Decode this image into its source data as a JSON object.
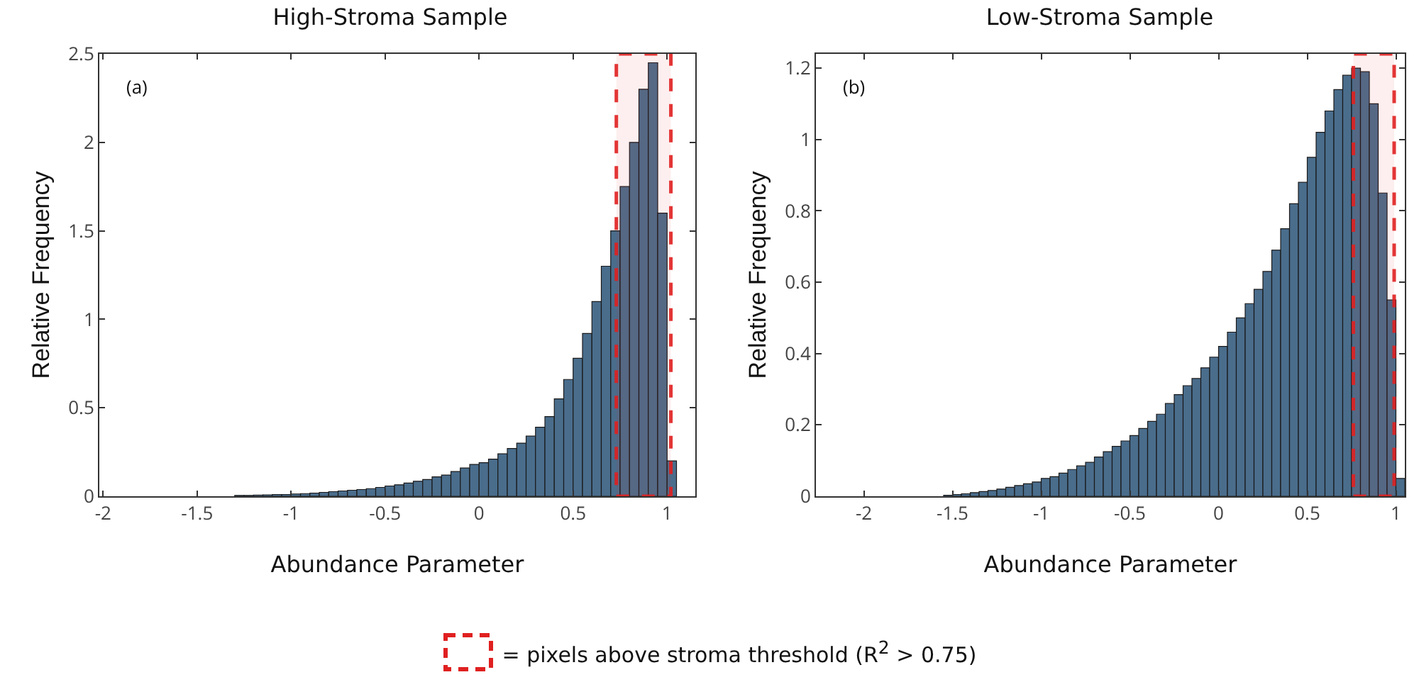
{
  "chart_data": [
    {
      "type": "histogram",
      "title": "High-Stroma Sample",
      "xlabel": "Abundance Parameter",
      "ylabel": "Relative Frequency",
      "color": "#4a6d8c",
      "bins": [
        -1.3,
        -1.25,
        -1.2,
        -1.15,
        -1.1,
        -1.05,
        -1.0,
        -0.95,
        -0.9,
        -0.85,
        -0.8,
        -0.75,
        -0.7,
        -0.65,
        -0.6,
        -0.55,
        -0.5,
        -0.45,
        -0.4,
        -0.35,
        -0.3,
        -0.25,
        -0.2,
        -0.15,
        -0.1,
        -0.05,
        0,
        0.05,
        0.1,
        0.15,
        0.2,
        0.25,
        0.3,
        0.35,
        0.4,
        0.45,
        0.5,
        0.55,
        0.6,
        0.65,
        0.7,
        0.75,
        0.8,
        0.85,
        0.9,
        0.95,
        1.0,
        1.05
      ],
      "values": [
        0.005,
        0.005,
        0.007,
        0.008,
        0.01,
        0.01,
        0.013,
        0.015,
        0.018,
        0.022,
        0.026,
        0.03,
        0.034,
        0.038,
        0.043,
        0.05,
        0.058,
        0.065,
        0.075,
        0.085,
        0.095,
        0.11,
        0.12,
        0.14,
        0.16,
        0.18,
        0.19,
        0.21,
        0.24,
        0.27,
        0.3,
        0.34,
        0.39,
        0.45,
        0.55,
        0.66,
        0.78,
        0.92,
        1.1,
        1.3,
        1.5,
        1.75,
        2.0,
        2.3,
        2.45,
        1.6,
        0.2
      ],
      "xlim": [
        -2.02,
        1.15
      ],
      "xticks": [
        -2,
        -1.5,
        -1,
        -0.5,
        0,
        0.5,
        1
      ],
      "ylim": [
        0,
        2.5
      ],
      "yticks": [
        0,
        0.5,
        1,
        1.5,
        2,
        2.5
      ],
      "grid": false,
      "bands": [
        {
          "axis": "x",
          "from": 0.73,
          "to": 1.02,
          "color": "#e02020"
        }
      ],
      "annotations": [
        "(a)"
      ]
    },
    {
      "type": "histogram",
      "title": "Low-Stroma Sample",
      "xlabel": "Abundance Parameter",
      "ylabel": "Relative Frequency",
      "color": "#4a6d8c",
      "bins": [
        -1.55,
        -1.5,
        -1.45,
        -1.4,
        -1.35,
        -1.3,
        -1.25,
        -1.2,
        -1.15,
        -1.1,
        -1.05,
        -1.0,
        -0.95,
        -0.9,
        -0.85,
        -0.8,
        -0.75,
        -0.7,
        -0.65,
        -0.6,
        -0.55,
        -0.5,
        -0.45,
        -0.4,
        -0.35,
        -0.3,
        -0.25,
        -0.2,
        -0.15,
        -0.1,
        -0.05,
        0,
        0.05,
        0.1,
        0.15,
        0.2,
        0.25,
        0.3,
        0.35,
        0.4,
        0.45,
        0.5,
        0.55,
        0.6,
        0.65,
        0.7,
        0.75,
        0.8,
        0.85,
        0.9,
        0.95,
        1.0,
        1.05
      ],
      "values": [
        0.003,
        0.005,
        0.007,
        0.01,
        0.013,
        0.016,
        0.02,
        0.025,
        0.03,
        0.035,
        0.04,
        0.05,
        0.055,
        0.065,
        0.075,
        0.085,
        0.095,
        0.11,
        0.125,
        0.14,
        0.155,
        0.17,
        0.19,
        0.21,
        0.23,
        0.26,
        0.285,
        0.31,
        0.33,
        0.36,
        0.39,
        0.42,
        0.46,
        0.5,
        0.54,
        0.58,
        0.63,
        0.69,
        0.75,
        0.82,
        0.88,
        0.95,
        1.02,
        1.08,
        1.14,
        1.18,
        1.2,
        1.19,
        1.1,
        0.85,
        0.55,
        0.05
      ],
      "xlim": [
        -2.27,
        1.05
      ],
      "xticks": [
        -2,
        -1.5,
        -1,
        -0.5,
        0,
        0.5,
        1
      ],
      "ylim": [
        0,
        1.24
      ],
      "yticks": [
        0,
        0.2,
        0.4,
        0.6,
        0.8,
        1,
        1.2
      ],
      "grid": false,
      "bands": [
        {
          "axis": "x",
          "from": 0.76,
          "to": 0.99,
          "color": "#e02020"
        }
      ],
      "annotations": [
        "(b)",
        "= pixels above stroma threshold (R$^{2}$ > 0.75)"
      ]
    }
  ]
}
